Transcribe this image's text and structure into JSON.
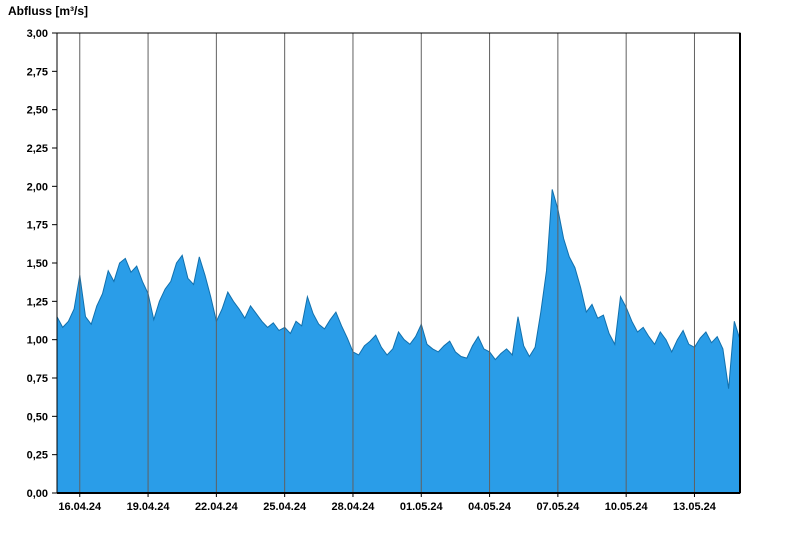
{
  "title": "Abfluss [m³/s]",
  "chart_data": {
    "type": "area",
    "title": "Abfluss [m³/s]",
    "xlabel": "",
    "ylabel": "Abfluss [m³/s]",
    "ylim": [
      0,
      3
    ],
    "grid": "vertical-only",
    "legend": "none",
    "x_start": "15.04.24",
    "x_end": "15.05.24",
    "interval_hours": 6,
    "x_span_days": 30,
    "series_name": "Abfluss",
    "y_ticks": [
      {
        "value": 0.0,
        "label": "0,00"
      },
      {
        "value": 0.25,
        "label": "0,25"
      },
      {
        "value": 0.5,
        "label": "0,50"
      },
      {
        "value": 0.75,
        "label": "0,75"
      },
      {
        "value": 1.0,
        "label": "1,00"
      },
      {
        "value": 1.25,
        "label": "1,25"
      },
      {
        "value": 1.5,
        "label": "1,50"
      },
      {
        "value": 1.75,
        "label": "1,75"
      },
      {
        "value": 2.0,
        "label": "2,00"
      },
      {
        "value": 2.25,
        "label": "2,25"
      },
      {
        "value": 2.5,
        "label": "2,50"
      },
      {
        "value": 2.75,
        "label": "2,75"
      },
      {
        "value": 3.0,
        "label": "3,00"
      }
    ],
    "x_ticks": [
      {
        "label": "16.04.24",
        "day": 1
      },
      {
        "label": "19.04.24",
        "day": 4
      },
      {
        "label": "22.04.24",
        "day": 7
      },
      {
        "label": "25.04.24",
        "day": 10
      },
      {
        "label": "28.04.24",
        "day": 13
      },
      {
        "label": "01.05.24",
        "day": 16
      },
      {
        "label": "04.05.24",
        "day": 19
      },
      {
        "label": "07.05.24",
        "day": 22
      },
      {
        "label": "10.05.24",
        "day": 25
      },
      {
        "label": "13.05.24",
        "day": 28
      }
    ],
    "values": [
      1.15,
      1.08,
      1.12,
      1.2,
      1.42,
      1.15,
      1.1,
      1.22,
      1.3,
      1.45,
      1.38,
      1.5,
      1.53,
      1.44,
      1.48,
      1.38,
      1.3,
      1.13,
      1.25,
      1.33,
      1.38,
      1.5,
      1.55,
      1.4,
      1.36,
      1.54,
      1.42,
      1.28,
      1.12,
      1.2,
      1.31,
      1.25,
      1.2,
      1.14,
      1.22,
      1.17,
      1.12,
      1.08,
      1.11,
      1.06,
      1.08,
      1.04,
      1.12,
      1.09,
      1.28,
      1.17,
      1.1,
      1.07,
      1.13,
      1.18,
      1.09,
      1.01,
      0.92,
      0.9,
      0.96,
      0.99,
      1.03,
      0.95,
      0.9,
      0.94,
      1.05,
      1.0,
      0.97,
      1.02,
      1.1,
      0.97,
      0.94,
      0.92,
      0.96,
      0.99,
      0.92,
      0.89,
      0.88,
      0.96,
      1.02,
      0.94,
      0.92,
      0.87,
      0.91,
      0.94,
      0.9,
      1.15,
      0.96,
      0.89,
      0.95,
      1.18,
      1.45,
      1.98,
      1.85,
      1.66,
      1.54,
      1.47,
      1.34,
      1.18,
      1.23,
      1.14,
      1.16,
      1.04,
      0.97,
      1.28,
      1.21,
      1.12,
      1.05,
      1.08,
      1.02,
      0.97,
      1.05,
      1.0,
      0.92,
      1.0,
      1.06,
      0.97,
      0.95,
      1.01,
      1.05,
      0.98,
      1.02,
      0.94,
      0.68,
      1.12,
      1.0
    ],
    "colors": {
      "fill": "#2A9DE8",
      "stroke": "#1170AD",
      "grid": "#606060",
      "axis": "#000000",
      "text": "#000000",
      "background": "#ffffff"
    }
  }
}
